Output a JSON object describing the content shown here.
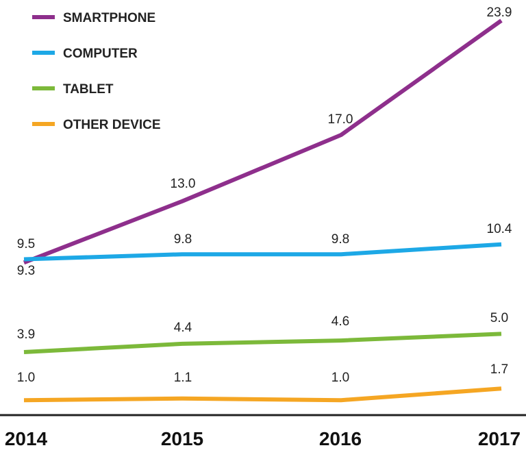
{
  "chart_data": {
    "type": "line",
    "categories": [
      "2014",
      "2015",
      "2016",
      "2017"
    ],
    "series": [
      {
        "name": "SMARTPHONE",
        "color": "#8e2f8c",
        "values": [
          9.3,
          13.0,
          17.0,
          23.9
        ],
        "labels": [
          "9.3",
          "13.0",
          "17.0",
          "23.9"
        ]
      },
      {
        "name": "COMPUTER",
        "color": "#1da8e6",
        "values": [
          9.5,
          9.8,
          9.8,
          10.4
        ],
        "labels": [
          "9.5",
          "9.8",
          "9.8",
          "10.4"
        ]
      },
      {
        "name": "TABLET",
        "color": "#7cb93a",
        "values": [
          3.9,
          4.4,
          4.6,
          5.0
        ],
        "labels": [
          "3.9",
          "4.4",
          "4.6",
          "5.0"
        ]
      },
      {
        "name": "OTHER DEVICE",
        "color": "#f5a623",
        "values": [
          1.0,
          1.1,
          1.0,
          1.7
        ],
        "labels": [
          "1.0",
          "1.1",
          "1.0",
          "1.7"
        ]
      }
    ],
    "legend_position": "top-left",
    "grid": false
  }
}
